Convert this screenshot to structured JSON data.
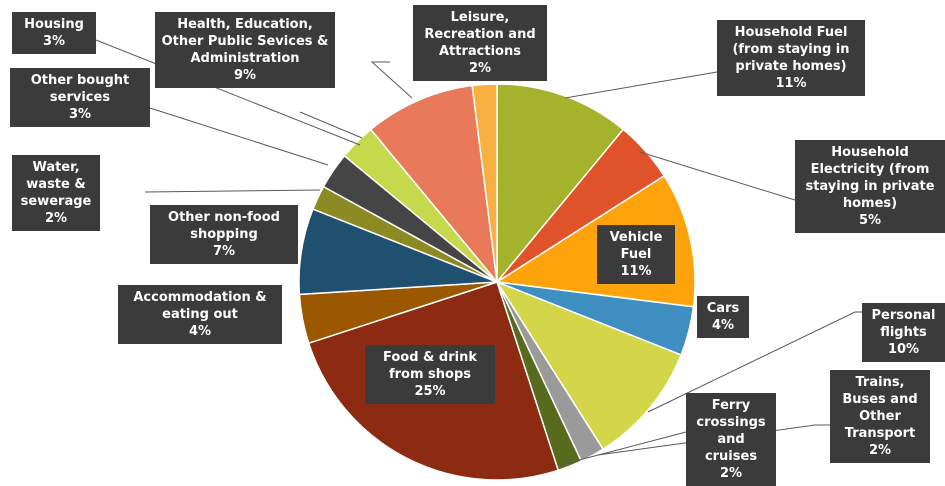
{
  "chart_data": {
    "type": "pie",
    "categories": [
      "Household Fuel (from staying in private homes)",
      "Household Electricity (from staying in private homes)",
      "Vehicle Fuel",
      "Cars",
      "Personal flights",
      "Trains, Buses and Other Transport",
      "Ferry crossings and cruises",
      "Food & drink from shops",
      "Accommodation & eating out",
      "Other non-food shopping",
      "Water, waste & sewerage",
      "Other bought services",
      "Housing",
      "Health, Education, Other Public Sevices & Administration",
      "Leisure, Recreation and Attractions"
    ],
    "values": [
      11,
      5,
      11,
      4,
      10,
      2,
      2,
      25,
      4,
      7,
      2,
      3,
      3,
      9,
      2
    ],
    "value_labels": [
      "11%",
      "5%",
      "11%",
      "4%",
      "10%",
      "2%",
      "2%",
      "25%",
      "4%",
      "7%",
      "2%",
      "3%",
      "3%",
      "9%",
      "2%"
    ],
    "colors": [
      "#a4b22c",
      "#e0532a",
      "#ffa30a",
      "#3e8ec2",
      "#d4d649",
      "#9a9a9a",
      "#586b1c",
      "#8c2b12",
      "#9b5800",
      "#20506f",
      "#8c8a22",
      "#454545",
      "#c6d84b",
      "#e8795a",
      "#f8b040"
    ]
  }
}
